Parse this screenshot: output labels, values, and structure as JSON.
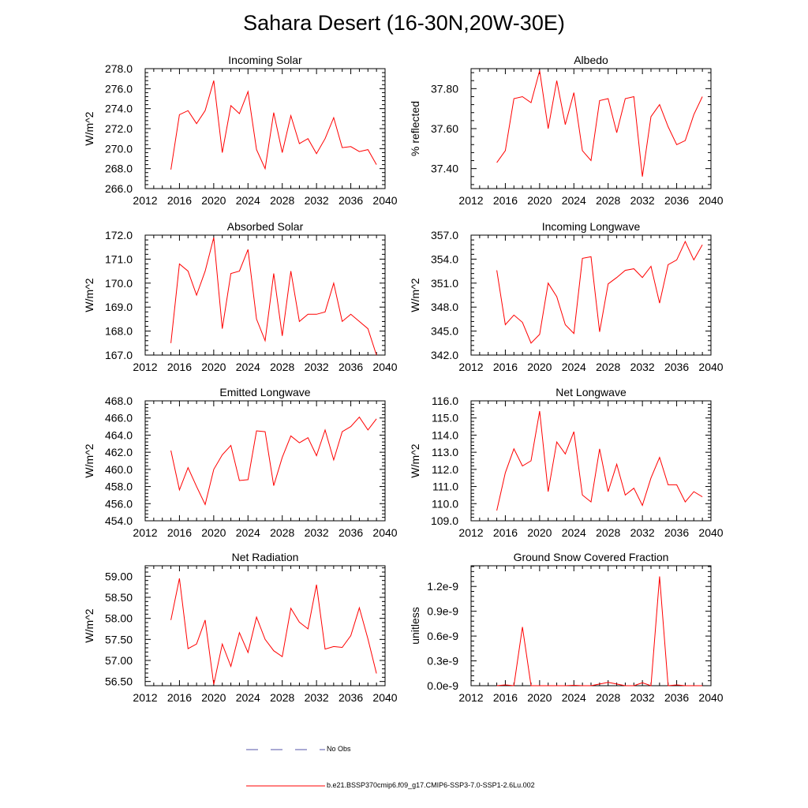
{
  "title": "Sahara Desert (16-30N,20W-30E)",
  "chart_data": [
    {
      "type": "line",
      "title": "Incoming Solar",
      "ylabel": "W/m^2",
      "xlim": [
        2012,
        2040
      ],
      "ylim": [
        266.0,
        278.0
      ],
      "xticks": [
        "2012",
        "2016",
        "2020",
        "2024",
        "2028",
        "2032",
        "2036",
        "2040"
      ],
      "yticks": [
        "266.0",
        "268.0",
        "270.0",
        "272.0",
        "274.0",
        "276.0",
        "278.0"
      ],
      "series": [
        {
          "color": "#ff0000",
          "x": [
            2015,
            2016,
            2017,
            2018,
            2019,
            2020,
            2021,
            2022,
            2023,
            2024,
            2025,
            2026,
            2027,
            2028,
            2029,
            2030,
            2031,
            2032,
            2033,
            2034,
            2035,
            2036,
            2037,
            2038,
            2039
          ],
          "values": [
            267.9,
            273.4,
            273.8,
            272.5,
            273.8,
            276.8,
            269.6,
            274.3,
            273.5,
            275.7,
            269.9,
            268.0,
            273.6,
            269.6,
            273.3,
            270.5,
            271.0,
            269.5,
            271.0,
            273.1,
            270.1,
            270.2,
            269.7,
            269.9,
            268.4
          ]
        }
      ]
    },
    {
      "type": "line",
      "title": "Albedo",
      "ylabel": "% reflected",
      "xlim": [
        2012,
        2040
      ],
      "ylim": [
        37.3,
        37.9
      ],
      "xticks": [
        "2012",
        "2016",
        "2020",
        "2024",
        "2028",
        "2032",
        "2036",
        "2040"
      ],
      "yticks": [
        "37.40",
        "37.60",
        "37.80"
      ],
      "series": [
        {
          "color": "#ff0000",
          "x": [
            2015,
            2016,
            2017,
            2018,
            2019,
            2020,
            2021,
            2022,
            2023,
            2024,
            2025,
            2026,
            2027,
            2028,
            2029,
            2030,
            2031,
            2032,
            2033,
            2034,
            2035,
            2036,
            2037,
            2038,
            2039
          ],
          "values": [
            37.43,
            37.49,
            37.75,
            37.76,
            37.73,
            37.89,
            37.6,
            37.84,
            37.62,
            37.78,
            37.49,
            37.44,
            37.74,
            37.75,
            37.58,
            37.75,
            37.76,
            37.36,
            37.66,
            37.72,
            37.61,
            37.52,
            37.54,
            37.67,
            37.76
          ]
        }
      ]
    },
    {
      "type": "line",
      "title": "Absorbed Solar",
      "ylabel": "W/m^2",
      "xlim": [
        2012,
        2040
      ],
      "ylim": [
        167.0,
        172.0
      ],
      "xticks": [
        "2012",
        "2016",
        "2020",
        "2024",
        "2028",
        "2032",
        "2036",
        "2040"
      ],
      "yticks": [
        "167.0",
        "168.0",
        "169.0",
        "170.0",
        "171.0",
        "172.0"
      ],
      "series": [
        {
          "color": "#ff0000",
          "x": [
            2015,
            2016,
            2017,
            2018,
            2019,
            2020,
            2021,
            2022,
            2023,
            2024,
            2025,
            2026,
            2027,
            2028,
            2029,
            2030,
            2031,
            2032,
            2033,
            2034,
            2035,
            2036,
            2037,
            2038,
            2039
          ],
          "values": [
            167.5,
            170.8,
            170.5,
            169.5,
            170.5,
            171.9,
            168.1,
            170.4,
            170.5,
            171.4,
            168.5,
            167.6,
            170.4,
            167.8,
            170.5,
            168.4,
            168.7,
            168.7,
            168.8,
            170.0,
            168.4,
            168.7,
            168.4,
            168.1,
            167.0
          ]
        }
      ]
    },
    {
      "type": "line",
      "title": "Incoming Longwave",
      "ylabel": "W/m^2",
      "xlim": [
        2012,
        2040
      ],
      "ylim": [
        342.0,
        357.0
      ],
      "xticks": [
        "2012",
        "2016",
        "2020",
        "2024",
        "2028",
        "2032",
        "2036",
        "2040"
      ],
      "yticks": [
        "342.0",
        "345.0",
        "348.0",
        "351.0",
        "354.0",
        "357.0"
      ],
      "series": [
        {
          "color": "#ff0000",
          "x": [
            2015,
            2016,
            2017,
            2018,
            2019,
            2020,
            2021,
            2022,
            2023,
            2024,
            2025,
            2026,
            2027,
            2028,
            2029,
            2030,
            2031,
            2032,
            2033,
            2034,
            2035,
            2036,
            2037,
            2038,
            2039
          ],
          "values": [
            352.6,
            345.8,
            347.0,
            346.1,
            343.5,
            344.6,
            351.0,
            349.3,
            345.8,
            344.7,
            354.1,
            354.3,
            344.9,
            350.9,
            351.7,
            352.6,
            352.8,
            351.7,
            353.1,
            348.5,
            353.3,
            353.9,
            356.2,
            353.9,
            355.8
          ]
        }
      ]
    },
    {
      "type": "line",
      "title": "Emitted Longwave",
      "ylabel": "W/m^2",
      "xlim": [
        2012,
        2040
      ],
      "ylim": [
        454.0,
        468.0
      ],
      "xticks": [
        "2012",
        "2016",
        "2020",
        "2024",
        "2028",
        "2032",
        "2036",
        "2040"
      ],
      "yticks": [
        "454.0",
        "456.0",
        "458.0",
        "460.0",
        "462.0",
        "464.0",
        "466.0",
        "468.0"
      ],
      "series": [
        {
          "color": "#ff0000",
          "x": [
            2015,
            2016,
            2017,
            2018,
            2019,
            2020,
            2021,
            2022,
            2023,
            2024,
            2025,
            2026,
            2027,
            2028,
            2029,
            2030,
            2031,
            2032,
            2033,
            2034,
            2035,
            2036,
            2037,
            2038,
            2039
          ],
          "values": [
            462.2,
            457.6,
            460.2,
            458.0,
            455.9,
            460.0,
            461.7,
            462.8,
            458.7,
            458.8,
            464.5,
            464.4,
            458.1,
            461.4,
            463.9,
            463.1,
            463.7,
            461.6,
            464.6,
            461.1,
            464.4,
            465.0,
            466.1,
            464.6,
            465.9
          ]
        }
      ]
    },
    {
      "type": "line",
      "title": "Net Longwave",
      "ylabel": "W/m^2",
      "xlim": [
        2012,
        2040
      ],
      "ylim": [
        109.0,
        116.0
      ],
      "xticks": [
        "2012",
        "2016",
        "2020",
        "2024",
        "2028",
        "2032",
        "2036",
        "2040"
      ],
      "yticks": [
        "109.0",
        "110.0",
        "111.0",
        "112.0",
        "113.0",
        "114.0",
        "115.0",
        "116.0"
      ],
      "series": [
        {
          "color": "#ff0000",
          "x": [
            2015,
            2016,
            2017,
            2018,
            2019,
            2020,
            2021,
            2022,
            2023,
            2024,
            2025,
            2026,
            2027,
            2028,
            2029,
            2030,
            2031,
            2032,
            2033,
            2034,
            2035,
            2036,
            2037,
            2038,
            2039
          ],
          "values": [
            109.6,
            111.8,
            113.2,
            112.2,
            112.5,
            115.4,
            110.7,
            113.6,
            112.9,
            114.2,
            110.5,
            110.1,
            113.2,
            110.7,
            112.3,
            110.5,
            110.9,
            109.9,
            111.5,
            112.7,
            111.1,
            111.1,
            110.1,
            110.7,
            110.4
          ]
        }
      ]
    },
    {
      "type": "line",
      "title": "Net Radiation",
      "ylabel": "W/m^2",
      "xlim": [
        2012,
        2040
      ],
      "ylim": [
        56.4,
        59.25
      ],
      "xticks": [
        "2012",
        "2016",
        "2020",
        "2024",
        "2028",
        "2032",
        "2036",
        "2040"
      ],
      "yticks": [
        "56.50",
        "57.00",
        "57.50",
        "58.00",
        "58.50",
        "59.00"
      ],
      "series": [
        {
          "color": "#ff0000",
          "x": [
            2015,
            2016,
            2017,
            2018,
            2019,
            2020,
            2021,
            2022,
            2023,
            2024,
            2025,
            2026,
            2027,
            2028,
            2029,
            2030,
            2031,
            2032,
            2033,
            2034,
            2035,
            2036,
            2037,
            2038,
            2039
          ],
          "values": [
            57.96,
            58.95,
            57.28,
            57.39,
            57.96,
            56.43,
            57.39,
            56.86,
            57.66,
            57.19,
            58.03,
            57.5,
            57.23,
            57.09,
            58.24,
            57.91,
            57.75,
            58.8,
            57.27,
            57.33,
            57.31,
            57.59,
            58.25,
            57.51,
            56.69
          ]
        }
      ]
    },
    {
      "type": "line",
      "title": "Ground Snow Covered Fraction",
      "ylabel": "unitless",
      "xlim": [
        2012,
        2040
      ],
      "ylim": [
        0.0,
        1.45e-09
      ],
      "xticks": [
        "2012",
        "2016",
        "2020",
        "2024",
        "2028",
        "2032",
        "2036",
        "2040"
      ],
      "yticks": [
        "0.0e-9",
        "0.3e-9",
        "0.6e-9",
        "0.9e-9",
        "1.2e-9"
      ],
      "ytick_values": [
        0.0,
        3e-10,
        6e-10,
        9e-10,
        1.2e-09
      ],
      "series": [
        {
          "color": "#ff0000",
          "x": [
            2015,
            2016,
            2017,
            2018,
            2019,
            2020,
            2021,
            2022,
            2023,
            2024,
            2025,
            2026,
            2027,
            2028,
            2029,
            2030,
            2031,
            2032,
            2033,
            2034,
            2035,
            2036,
            2037,
            2038,
            2039
          ],
          "values": [
            0.0,
            1e-11,
            0.0,
            7.1e-10,
            0.0,
            0.0,
            0.0,
            0.0,
            0.0,
            5e-12,
            0.0,
            0.0,
            2e-11,
            4e-11,
            2e-11,
            0.0,
            0.0,
            3.5e-11,
            0.0,
            1.32e-09,
            0.0,
            1e-11,
            0.0,
            0.0,
            0.0
          ]
        }
      ]
    }
  ],
  "legend": {
    "items": [
      {
        "label": "No Obs",
        "color": "#5555aa",
        "style": "dashed"
      },
      {
        "label": "b.e21.BSSP370cmip6.f09_g17.CMIP6-SSP3-7.0-SSP1-2.6Lu.002",
        "color": "#ff0000",
        "style": "solid"
      }
    ]
  }
}
